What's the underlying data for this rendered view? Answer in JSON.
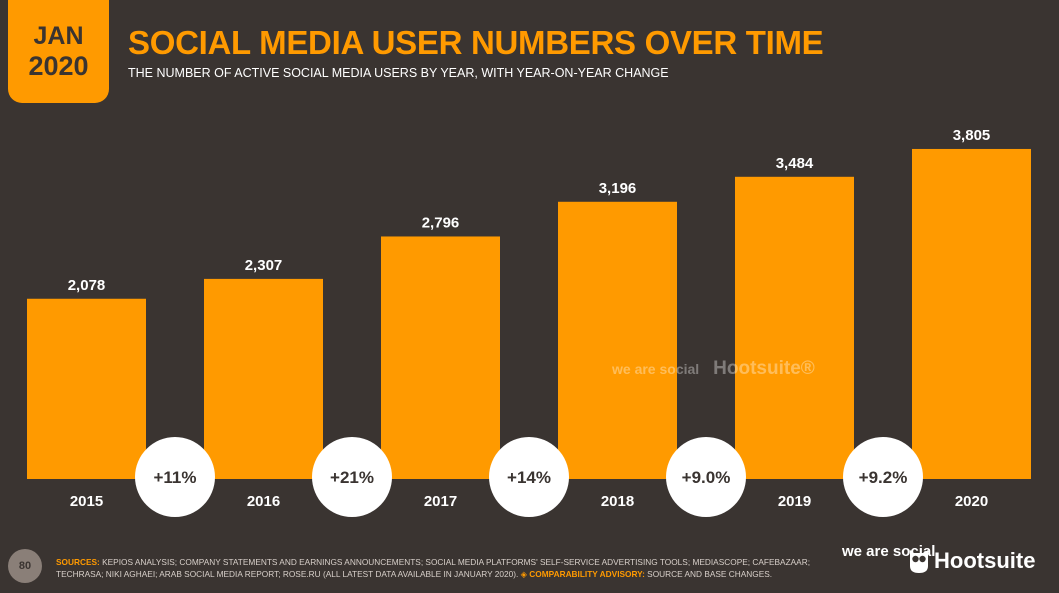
{
  "badge": {
    "month": "JAN",
    "year": "2020"
  },
  "header": {
    "title": "SOCIAL MEDIA USER NUMBERS OVER TIME",
    "subtitle": "THE NUMBER OF ACTIVE SOCIAL MEDIA USERS BY YEAR, WITH YEAR-ON-YEAR CHANGE"
  },
  "colors": {
    "bar": "#ff9a00",
    "background": "#3a3431",
    "text": "#ffffff",
    "bubble": "#ffffff",
    "bubble_text": "#3a3431"
  },
  "chart_data": {
    "type": "bar",
    "categories": [
      "2015",
      "2016",
      "2017",
      "2018",
      "2019",
      "2020"
    ],
    "values": [
      2078,
      2307,
      2796,
      3196,
      3484,
      3805
    ],
    "value_labels": [
      "2,078",
      "2,307",
      "2,796",
      "3,196",
      "3,484",
      "3,805"
    ],
    "changes": [
      "+11%",
      "+21%",
      "+14%",
      "+9.0%",
      "+9.2%"
    ],
    "title": "SOCIAL MEDIA USER NUMBERS OVER TIME",
    "xlabel": "",
    "ylabel": "",
    "ylim": [
      0,
      4000
    ],
    "grid": false,
    "legend": "none"
  },
  "watermark": {
    "we_are_social": "we are social",
    "hootsuite": "Hootsuite®"
  },
  "footer": {
    "page_number": "80",
    "sources_label": "SOURCES:",
    "sources_text": " KEPIOS ANALYSIS; COMPANY STATEMENTS AND EARNINGS ANNOUNCEMENTS; SOCIAL MEDIA PLATFORMS' SELF-SERVICE ADVERTISING TOOLS; MEDIASCOPE; CAFEBAZAAR; TECHRASA; NIKI AGHAEI; ARAB SOCIAL MEDIA REPORT; ROSE.RU (ALL LATEST DATA AVAILABLE IN JANUARY 2020). ",
    "advisory_label": "◈ COMPARABILITY ADVISORY:",
    "advisory_text": " SOURCE AND BASE CHANGES.",
    "logo_ws": "we are social",
    "logo_hs": "Hootsuite"
  }
}
